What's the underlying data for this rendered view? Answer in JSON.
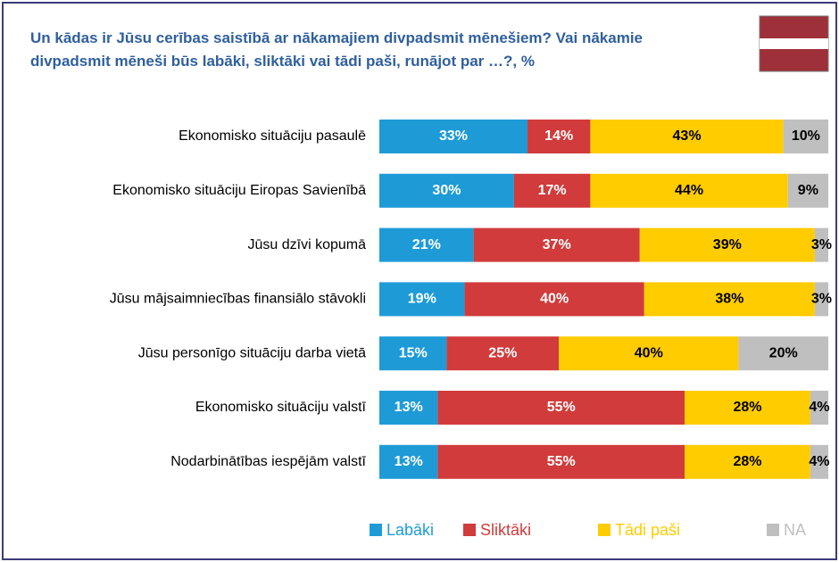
{
  "chart_data": {
    "type": "stacked-barh",
    "title": "Un kādas ir Jūsu cerības saistībā ar nākamajiem divpadsmit mēnešiem? Vai nākamie divpadsmit mēneši būs labāki, sliktāki vai tādi paši, runājot par …?, %",
    "categories": [
      "Ekonomisko situāciju pasaulē",
      "Ekonomisko situāciju Eiropas Savienībā",
      "Jūsu dzīvi kopumā",
      "Jūsu mājsaimniecības finansiālo stāvokli",
      "Jūsu personīgo situāciju darba vietā",
      "Ekonomisko situāciju valstī",
      "Nodarbinātības iespējām valstī"
    ],
    "xlim": [
      0,
      100
    ],
    "series": [
      {
        "name": "Labāki",
        "color": "#1e9bd7",
        "values": [
          33,
          30,
          21,
          19,
          15,
          13,
          13
        ],
        "value_labels": [
          "33%",
          "30%",
          "21%",
          "19%",
          "15%",
          "13%",
          "13%"
        ]
      },
      {
        "name": "Sliktāki",
        "color": "#d13b3b",
        "values": [
          14,
          17,
          37,
          40,
          25,
          55,
          55
        ],
        "value_labels": [
          "14%",
          "17%",
          "37%",
          "40%",
          "25%",
          "55%",
          "55%"
        ]
      },
      {
        "name": "Tādi paši",
        "color": "#ffcc00",
        "values": [
          43,
          44,
          39,
          38,
          40,
          28,
          28
        ],
        "value_labels": [
          "43%",
          "44%",
          "39%",
          "38%",
          "40%",
          "28%",
          "28%"
        ]
      },
      {
        "name": "NA",
        "color": "#bfbfbf",
        "values": [
          10,
          9,
          3,
          3,
          20,
          4,
          4
        ],
        "value_labels": [
          "10%",
          "9%",
          "3%",
          "3%",
          "20%",
          "4%",
          "4%"
        ]
      }
    ],
    "legend": "bottom"
  }
}
